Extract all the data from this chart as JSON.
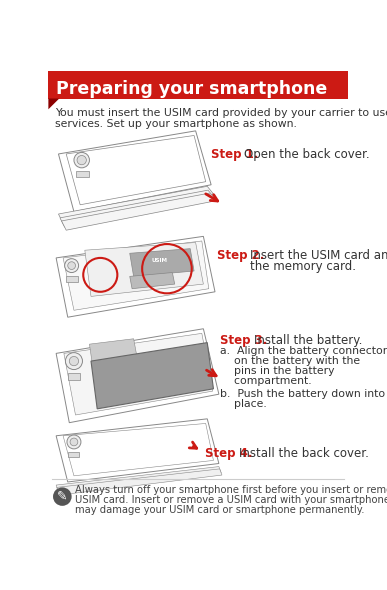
{
  "title": "Preparing your smartphone",
  "title_bg": "#CC1A14",
  "title_color": "#FFFFFF",
  "intro_line1": "You must insert the USIM card provided by your carrier to use cellular",
  "intro_line2": "services. Set up your smartphone as shown.",
  "step1_label": "Step 1.",
  "step1_text": "Open the back cover.",
  "step2_label": "Step 2.",
  "step2_text1": "Insert the USIM card and",
  "step2_text2": "the memory card.",
  "step3_label": "Step 3.",
  "step3_text": "Install the battery.",
  "step3a_text1": "a.  Align the battery connectors",
  "step3a_text2": "    on the battery with the",
  "step3a_text3": "    pins in the battery",
  "step3a_text4": "    compartment.",
  "step3b_text1": "b.  Push the battery down into",
  "step3b_text2": "    place.",
  "step4_label": "Step 4.",
  "step4_text": "Install the back cover.",
  "warning_text1": "Always turn off your smartphone first before you insert or remove a",
  "warning_text2": "USIM card. Insert or remove a USIM card with your smartphone on",
  "warning_text3": "may damage your USIM card or smartphone permanently.",
  "step_color": "#CC1A14",
  "text_color": "#333333",
  "bg_color": "#FFFFFF",
  "phone_edge": "#888888",
  "phone_fill": "#FFFFFF",
  "battery_fill": "#999999"
}
